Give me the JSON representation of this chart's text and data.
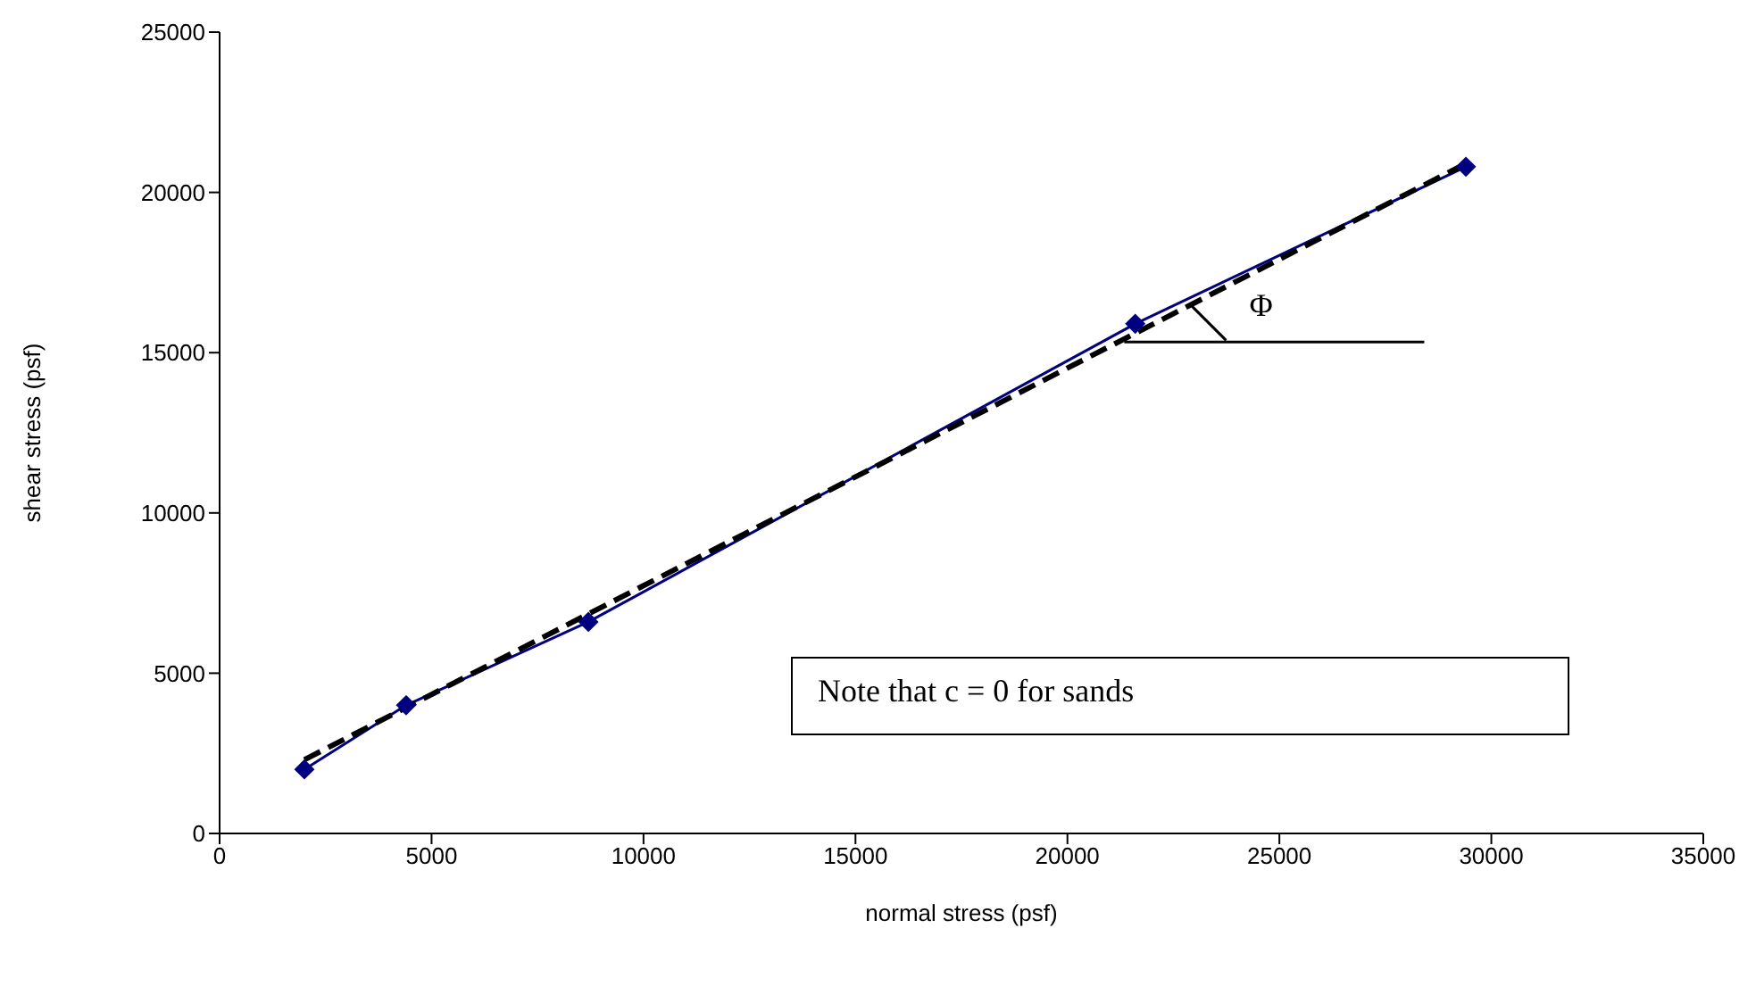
{
  "chart_data": {
    "type": "line",
    "xlabel": "normal stress (psf)",
    "ylabel": "shear stress (psf)",
    "xlim": [
      0,
      35000
    ],
    "xticks": [
      0,
      5000,
      10000,
      15000,
      20000,
      25000,
      30000,
      35000
    ],
    "ylim": [
      0,
      25000
    ],
    "yticks": [
      0,
      5000,
      10000,
      15000,
      20000,
      25000
    ],
    "grid": false,
    "legend": false,
    "series": [
      {
        "color": "#000080",
        "marker": "diamond",
        "line_style": "solid",
        "x": [
          2000,
          4400,
          8700,
          21600,
          29400
        ],
        "values": [
          2000,
          4000,
          6600,
          15900,
          20800
        ]
      },
      {
        "color": "#000000",
        "marker": "none",
        "line_style": "dashed",
        "x": [
          2000,
          29400
        ],
        "values": [
          2300,
          20900
        ]
      }
    ],
    "annotations": [
      {
        "text": "Φ",
        "x": 22900,
        "y": 16500
      },
      "Note that c = 0 for sands"
    ]
  }
}
